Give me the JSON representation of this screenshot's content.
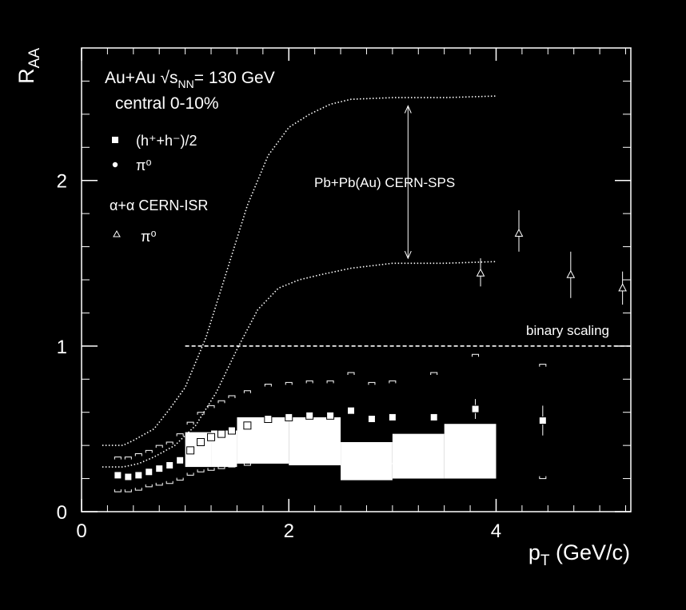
{
  "chart_data": {
    "type": "scatter",
    "xlabel_main": "p",
    "xlabel_sub": "T",
    "xlabel_unit": " (GeV/c)",
    "ylabel_main": "R",
    "ylabel_sub": "AA",
    "xlim": [
      0,
      5.3
    ],
    "ylim": [
      0,
      2.8
    ],
    "xticks": [
      0,
      2,
      4
    ],
    "yticks": [
      0,
      1,
      2
    ],
    "x_minor_step": 0.25,
    "y_minor_step": 0.2,
    "legend": {
      "line1": "Au+Au √s",
      "line1_sub": "NN",
      "line1_tail": "= 130 GeV",
      "line2": "central 0-10%",
      "entry_hadrons": "(h⁺+h⁻)/2",
      "entry_pi0": "π⁰",
      "isr_title": "α+α CERN-ISR",
      "entry_isr_pi0": "π⁰"
    },
    "annotations": {
      "sps": "Pb+Pb(Au) CERN-SPS",
      "binary": "binary scaling"
    },
    "binary_scaling": {
      "y": 1.0,
      "x_range": [
        1.0,
        5.3
      ]
    },
    "sps_upper_curve": [
      [
        0.2,
        0.4
      ],
      [
        0.4,
        0.4
      ],
      [
        0.5,
        0.43
      ],
      [
        0.7,
        0.5
      ],
      [
        0.85,
        0.62
      ],
      [
        1.0,
        0.75
      ],
      [
        1.2,
        1.05
      ],
      [
        1.4,
        1.45
      ],
      [
        1.6,
        1.85
      ],
      [
        1.8,
        2.15
      ],
      [
        2.0,
        2.32
      ],
      [
        2.2,
        2.4
      ],
      [
        2.4,
        2.46
      ],
      [
        2.6,
        2.49
      ],
      [
        3.0,
        2.5
      ],
      [
        3.5,
        2.5
      ],
      [
        4.0,
        2.51
      ]
    ],
    "sps_lower_curve": [
      [
        0.2,
        0.27
      ],
      [
        0.4,
        0.27
      ],
      [
        0.55,
        0.29
      ],
      [
        0.7,
        0.33
      ],
      [
        0.9,
        0.4
      ],
      [
        1.1,
        0.52
      ],
      [
        1.3,
        0.72
      ],
      [
        1.5,
        0.98
      ],
      [
        1.7,
        1.22
      ],
      [
        1.9,
        1.35
      ],
      [
        2.1,
        1.4
      ],
      [
        2.3,
        1.43
      ],
      [
        2.6,
        1.47
      ],
      [
        3.0,
        1.5
      ],
      [
        3.5,
        1.5
      ],
      [
        4.0,
        1.51
      ]
    ],
    "sps_arrow": {
      "x": 3.15,
      "y_top": 2.45,
      "y_bottom": 1.53
    },
    "hadrons": [
      {
        "x": 0.35,
        "y": 0.22
      },
      {
        "x": 0.45,
        "y": 0.21
      },
      {
        "x": 0.55,
        "y": 0.22
      },
      {
        "x": 0.65,
        "y": 0.24
      },
      {
        "x": 0.75,
        "y": 0.26
      },
      {
        "x": 0.85,
        "y": 0.28
      },
      {
        "x": 0.95,
        "y": 0.31
      },
      {
        "x": 1.05,
        "y": 0.37
      },
      {
        "x": 1.15,
        "y": 0.42
      },
      {
        "x": 1.25,
        "y": 0.45
      },
      {
        "x": 1.35,
        "y": 0.47
      },
      {
        "x": 1.45,
        "y": 0.49
      },
      {
        "x": 1.6,
        "y": 0.52
      },
      {
        "x": 1.8,
        "y": 0.56
      },
      {
        "x": 2.0,
        "y": 0.57
      },
      {
        "x": 2.2,
        "y": 0.58
      },
      {
        "x": 2.4,
        "y": 0.58
      },
      {
        "x": 2.6,
        "y": 0.61
      },
      {
        "x": 2.8,
        "y": 0.56
      },
      {
        "x": 3.0,
        "y": 0.57
      },
      {
        "x": 3.4,
        "y": 0.57
      },
      {
        "x": 3.8,
        "y": 0.62
      },
      {
        "x": 4.45,
        "y": 0.55
      }
    ],
    "hadron_errors": [
      {
        "x": 3.8,
        "lo": 0.56,
        "hi": 0.68
      },
      {
        "x": 4.45,
        "lo": 0.46,
        "hi": 0.64
      }
    ],
    "syst_bands": [
      {
        "x0": 1.0,
        "x1": 1.25,
        "lo": 0.27,
        "hi": 0.48
      },
      {
        "x0": 1.25,
        "x1": 1.5,
        "lo": 0.27,
        "hi": 0.49
      },
      {
        "x0": 1.5,
        "x1": 2.0,
        "lo": 0.29,
        "hi": 0.57
      },
      {
        "x0": 2.0,
        "x1": 2.5,
        "lo": 0.28,
        "hi": 0.57
      },
      {
        "x0": 2.5,
        "x1": 3.0,
        "lo": 0.19,
        "hi": 0.42
      },
      {
        "x0": 3.0,
        "x1": 3.5,
        "lo": 0.2,
        "hi": 0.47
      },
      {
        "x0": 3.5,
        "x1": 4.0,
        "lo": 0.2,
        "hi": 0.53
      }
    ],
    "syst_brackets": [
      {
        "x": 0.35,
        "lo": 0.12,
        "hi": 0.33
      },
      {
        "x": 0.45,
        "lo": 0.12,
        "hi": 0.33
      },
      {
        "x": 0.55,
        "lo": 0.13,
        "hi": 0.35
      },
      {
        "x": 0.65,
        "lo": 0.15,
        "hi": 0.37
      },
      {
        "x": 0.75,
        "lo": 0.16,
        "hi": 0.4
      },
      {
        "x": 0.85,
        "lo": 0.17,
        "hi": 0.42
      },
      {
        "x": 0.95,
        "lo": 0.19,
        "hi": 0.47
      },
      {
        "x": 1.05,
        "lo": 0.22,
        "hi": 0.54
      },
      {
        "x": 1.15,
        "lo": 0.24,
        "hi": 0.6
      },
      {
        "x": 1.25,
        "lo": 0.25,
        "hi": 0.64
      },
      {
        "x": 1.35,
        "lo": 0.26,
        "hi": 0.67
      },
      {
        "x": 1.45,
        "lo": 0.27,
        "hi": 0.7
      },
      {
        "x": 1.6,
        "lo": 0.28,
        "hi": 0.73
      },
      {
        "x": 1.8,
        "lo": 0.3,
        "hi": 0.77
      },
      {
        "x": 2.0,
        "lo": 0.3,
        "hi": 0.78
      },
      {
        "x": 2.2,
        "lo": 0.3,
        "hi": 0.79
      },
      {
        "x": 2.4,
        "lo": 0.3,
        "hi": 0.79
      },
      {
        "x": 2.6,
        "lo": 0.31,
        "hi": 0.84
      },
      {
        "x": 2.8,
        "lo": 0.29,
        "hi": 0.78
      },
      {
        "x": 3.0,
        "lo": 0.29,
        "hi": 0.79
      },
      {
        "x": 3.4,
        "lo": 0.29,
        "hi": 0.84
      },
      {
        "x": 3.8,
        "lo": 0.3,
        "hi": 0.95
      },
      {
        "x": 4.45,
        "lo": 0.2,
        "hi": 0.89
      }
    ],
    "isr_pi0": [
      {
        "x": 3.85,
        "y": 1.44,
        "lo": 1.36,
        "hi": 1.53
      },
      {
        "x": 4.22,
        "y": 1.68,
        "lo": 1.57,
        "hi": 1.82
      },
      {
        "x": 4.72,
        "y": 1.43,
        "lo": 1.29,
        "hi": 1.57
      },
      {
        "x": 5.22,
        "y": 1.35,
        "lo": 1.25,
        "hi": 1.45
      }
    ]
  }
}
